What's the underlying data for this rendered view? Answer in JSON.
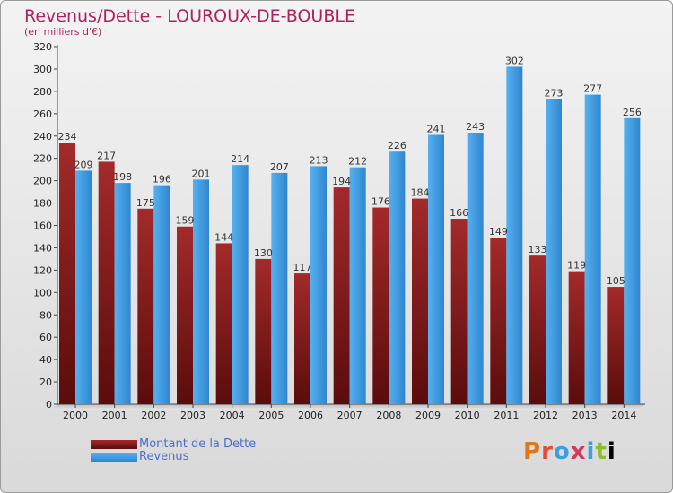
{
  "header": {
    "title": "Revenus/Dette - LOUROUX-DE-BOUBLE",
    "subtitle": "(en milliers d'€)"
  },
  "brand": {
    "text": "Proxiti"
  },
  "chart_data": {
    "type": "bar",
    "categories": [
      "2000",
      "2001",
      "2002",
      "2003",
      "2004",
      "2005",
      "2006",
      "2007",
      "2008",
      "2009",
      "2010",
      "2011",
      "2012",
      "2013",
      "2014"
    ],
    "series": [
      {
        "name": "Montant de la Dette",
        "color": "#7b1a1a",
        "values": [
          234,
          217,
          175,
          159,
          144,
          130,
          117,
          194,
          176,
          184,
          166,
          149,
          133,
          119,
          105
        ]
      },
      {
        "name": "Revenus",
        "color": "#3d9be0",
        "values": [
          209,
          198,
          196,
          201,
          214,
          207,
          213,
          212,
          226,
          241,
          243,
          302,
          273,
          277,
          256
        ]
      }
    ],
    "ylim": [
      0,
      320
    ],
    "ytick_step": 20,
    "grid": false,
    "legend_position": "bottom-left"
  }
}
